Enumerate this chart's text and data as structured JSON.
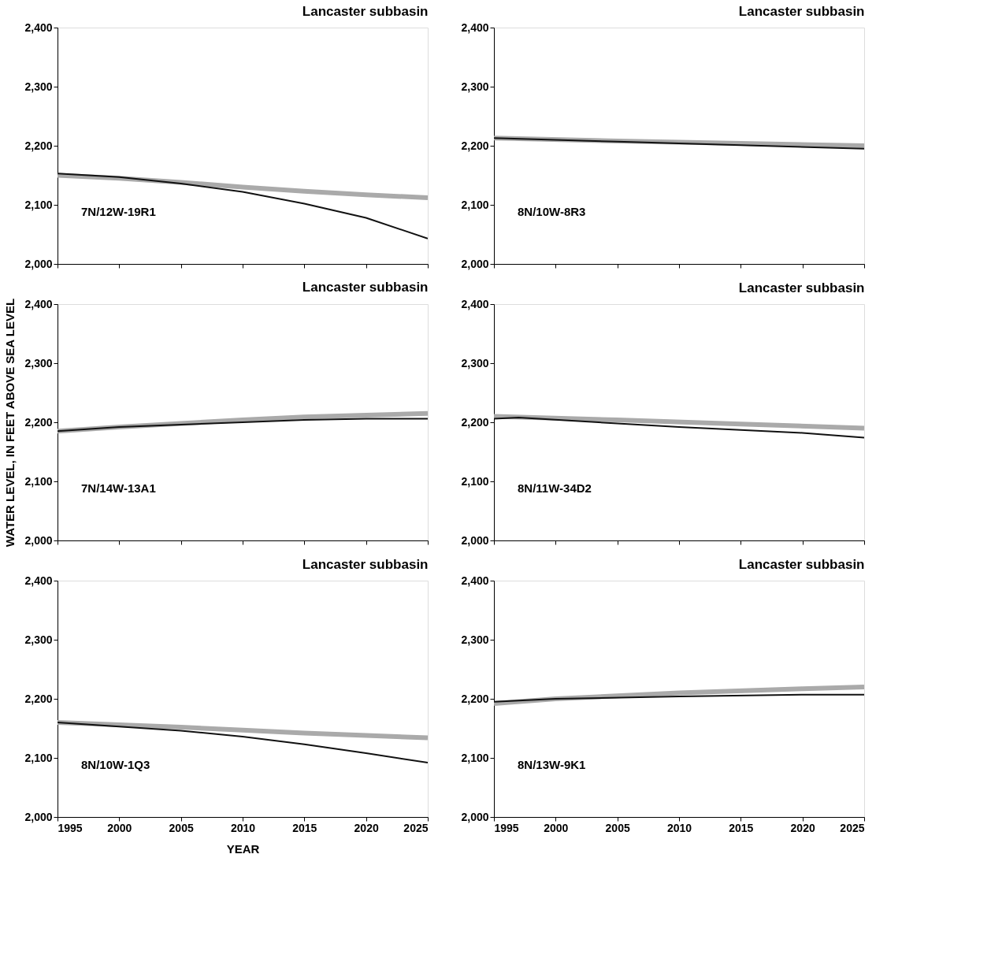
{
  "chart_data": [
    {
      "type": "line",
      "title": "Lancaster subbasin",
      "annotations": [
        "7N/12W-19R1"
      ],
      "xlim": [
        1995,
        2025
      ],
      "xticks": [
        1995,
        2000,
        2005,
        2010,
        2015,
        2020,
        2025
      ],
      "ylim": [
        2000,
        2400
      ],
      "yticks": [
        {
          "value": 2000,
          "label": "2,000"
        },
        {
          "value": 2100,
          "label": "2,100"
        },
        {
          "value": 2200,
          "label": "2,200"
        },
        {
          "value": 2300,
          "label": "2,300"
        },
        {
          "value": 2400,
          "label": "2,400"
        }
      ],
      "tick_labels": "y",
      "grid": false,
      "series": [
        {
          "color": "#aaaaaa",
          "x": [
            1995,
            2000,
            2005,
            2010,
            2015,
            2020,
            2025
          ],
          "values": [
            2150,
            2145,
            2138,
            2130,
            2123,
            2117,
            2112
          ]
        },
        {
          "color": "#111111",
          "x": [
            1995,
            2000,
            2005,
            2010,
            2015,
            2020,
            2025
          ],
          "values": [
            2153,
            2147,
            2136,
            2122,
            2102,
            2078,
            2043
          ]
        }
      ]
    },
    {
      "type": "line",
      "title": "Lancaster subbasin",
      "annotations": [
        "8N/10W-8R3"
      ],
      "xlim": [
        1995,
        2025
      ],
      "xticks": [
        1995,
        2000,
        2005,
        2010,
        2015,
        2020,
        2025
      ],
      "ylim": [
        2000,
        2400
      ],
      "yticks": [
        {
          "value": 2000,
          "label": "2,000"
        },
        {
          "value": 2100,
          "label": "2,100"
        },
        {
          "value": 2200,
          "label": "2,200"
        },
        {
          "value": 2300,
          "label": "2,300"
        },
        {
          "value": 2400,
          "label": "2,400"
        }
      ],
      "tick_labels": "y",
      "grid": false,
      "series": [
        {
          "color": "#aaaaaa",
          "x": [
            1995,
            2005,
            2015,
            2025
          ],
          "values": [
            2213,
            2208,
            2204,
            2200
          ]
        },
        {
          "color": "#111111",
          "x": [
            1995,
            2005,
            2015,
            2025
          ],
          "values": [
            2213,
            2207,
            2201,
            2195
          ]
        }
      ]
    },
    {
      "type": "line",
      "title": "Lancaster subbasin",
      "ylabel": "WATER LEVEL, IN FEET ABOVE SEA LEVEL",
      "annotations": [
        "7N/14W-13A1"
      ],
      "xlim": [
        1995,
        2025
      ],
      "xticks": [
        1995,
        2000,
        2005,
        2010,
        2015,
        2020,
        2025
      ],
      "ylim": [
        2000,
        2400
      ],
      "yticks": [
        {
          "value": 2000,
          "label": "2,000"
        },
        {
          "value": 2100,
          "label": "2,100"
        },
        {
          "value": 2200,
          "label": "2,200"
        },
        {
          "value": 2300,
          "label": "2,300"
        },
        {
          "value": 2400,
          "label": "2,400"
        }
      ],
      "tick_labels": "y",
      "grid": false,
      "series": [
        {
          "color": "#aaaaaa",
          "x": [
            1995,
            2000,
            2005,
            2010,
            2015,
            2020,
            2025
          ],
          "values": [
            2185,
            2192,
            2198,
            2204,
            2209,
            2212,
            2215
          ]
        },
        {
          "color": "#111111",
          "x": [
            1995,
            2000,
            2005,
            2010,
            2015,
            2020,
            2025
          ],
          "values": [
            2185,
            2192,
            2196,
            2200,
            2204,
            2206,
            2206
          ]
        }
      ]
    },
    {
      "type": "line",
      "title": "Lancaster subbasin",
      "annotations": [
        "8N/11W-34D2"
      ],
      "xlim": [
        1995,
        2025
      ],
      "xticks": [
        1995,
        2000,
        2005,
        2010,
        2015,
        2020,
        2025
      ],
      "ylim": [
        2000,
        2400
      ],
      "yticks": [
        {
          "value": 2000,
          "label": "2,000"
        },
        {
          "value": 2100,
          "label": "2,100"
        },
        {
          "value": 2200,
          "label": "2,200"
        },
        {
          "value": 2300,
          "label": "2,300"
        },
        {
          "value": 2400,
          "label": "2,400"
        }
      ],
      "tick_labels": "y",
      "grid": false,
      "series": [
        {
          "color": "#aaaaaa",
          "x": [
            1995,
            2005,
            2015,
            2025
          ],
          "values": [
            2210,
            2204,
            2197,
            2190
          ]
        },
        {
          "color": "#111111",
          "x": [
            1995,
            1997,
            2005,
            2010,
            2015,
            2020,
            2025
          ],
          "values": [
            2206,
            2208,
            2198,
            2192,
            2187,
            2182,
            2174
          ]
        }
      ]
    },
    {
      "type": "line",
      "title": "Lancaster subbasin",
      "xlabel": "YEAR",
      "annotations": [
        "8N/10W-1Q3"
      ],
      "xlim": [
        1995,
        2025
      ],
      "xticks": [
        1995,
        2000,
        2005,
        2010,
        2015,
        2020,
        2025
      ],
      "ylim": [
        2000,
        2400
      ],
      "yticks": [
        {
          "value": 2000,
          "label": "2,000"
        },
        {
          "value": 2100,
          "label": "2,100"
        },
        {
          "value": 2200,
          "label": "2,200"
        },
        {
          "value": 2300,
          "label": "2,300"
        },
        {
          "value": 2400,
          "label": "2,400"
        }
      ],
      "grid": false,
      "series": [
        {
          "color": "#aaaaaa",
          "x": [
            1995,
            2005,
            2010,
            2015,
            2020,
            2025
          ],
          "values": [
            2160,
            2152,
            2147,
            2142,
            2138,
            2134
          ]
        },
        {
          "color": "#111111",
          "x": [
            1995,
            2000,
            2005,
            2010,
            2015,
            2020,
            2025
          ],
          "values": [
            2160,
            2153,
            2146,
            2136,
            2123,
            2108,
            2092
          ]
        }
      ]
    },
    {
      "type": "line",
      "title": "Lancaster subbasin",
      "annotations": [
        "8N/13W-9K1"
      ],
      "xlim": [
        1995,
        2025
      ],
      "xticks": [
        1995,
        2000,
        2005,
        2010,
        2015,
        2020,
        2025
      ],
      "ylim": [
        2000,
        2400
      ],
      "yticks": [
        {
          "value": 2000,
          "label": "2,000"
        },
        {
          "value": 2100,
          "label": "2,100"
        },
        {
          "value": 2200,
          "label": "2,200"
        },
        {
          "value": 2300,
          "label": "2,300"
        },
        {
          "value": 2400,
          "label": "2,400"
        }
      ],
      "grid": false,
      "series": [
        {
          "color": "#aaaaaa",
          "x": [
            1995,
            2000,
            2010,
            2020,
            2025
          ],
          "values": [
            2192,
            2200,
            2210,
            2217,
            2220
          ]
        },
        {
          "color": "#111111",
          "x": [
            1995,
            2000,
            2010,
            2020,
            2025
          ],
          "values": [
            2195,
            2200,
            2204,
            2207,
            2207
          ]
        }
      ]
    }
  ]
}
